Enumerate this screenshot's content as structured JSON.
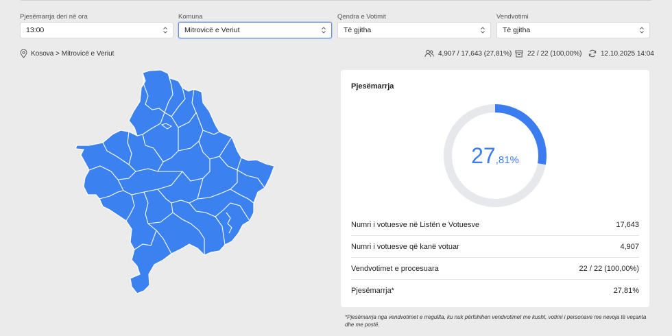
{
  "filters": [
    {
      "label": "Pjesëmarrja deri në ora",
      "value": "13:00",
      "active": false
    },
    {
      "label": "Komuna",
      "value": "Mitrovicë e Veriut",
      "active": true
    },
    {
      "label": "Qendra e Votimit",
      "value": "Të gjitha",
      "active": false
    },
    {
      "label": "Vendvotimi",
      "value": "Të gjitha",
      "active": false
    }
  ],
  "infobar": {
    "breadcrumb": "Kosova > Mitrovicë e Veriut",
    "voters": "4,907 / 17,643 (27,81%)",
    "stations": "22 / 22 (100,00%)",
    "updated": "12.10.2025 14:04"
  },
  "map": {
    "fill_color": "#3b82f0",
    "stroke_color": "#ffffff"
  },
  "card": {
    "title": "Pjesëmarrja",
    "percent_int": "27",
    "percent_dec": ",81%",
    "percent_value": 27.81,
    "accent_color": "#3b7cf0",
    "rows": [
      {
        "label": "Numri i votuesve në Listën e Votuesve",
        "value": "17,643"
      },
      {
        "label": "Numri i votuesve që kanë votuar",
        "value": "4,907"
      },
      {
        "label": "Vendvotimet e procesuara",
        "value": "22 / 22 (100,00%)"
      },
      {
        "label": "Pjesëmarrja*",
        "value": "27,81%"
      }
    ]
  },
  "footnote": "*Pjesëmarrja nga vendvotimet e rregullta, ku nuk përfshihen vendvotimet me kusht, votimi i personave me nevoja të veçanta dhe me postë."
}
